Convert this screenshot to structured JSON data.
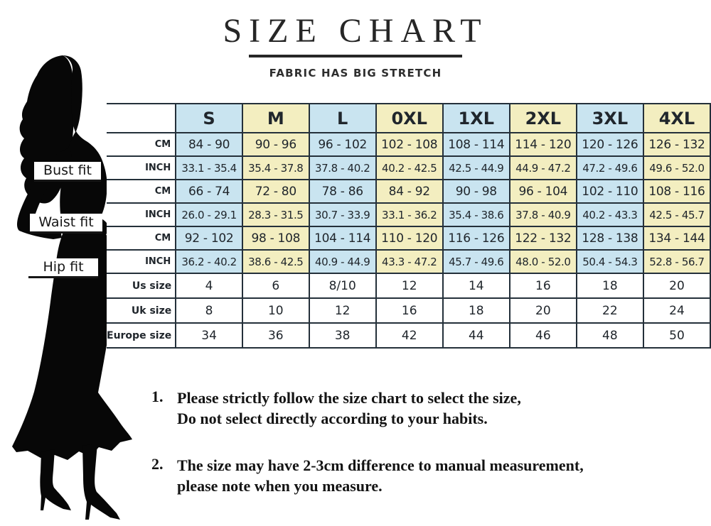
{
  "title": "SIZE CHART",
  "subtitle": "FABRIC HAS BIG STRETCH",
  "colors": {
    "column_blue": "#c9e4f0",
    "column_yellow": "#f3eec0",
    "grid_border": "#24303a",
    "text": "#1d1d1d",
    "silhouette": "#070707"
  },
  "figure": {
    "bust_label": "Bust fit",
    "waist_label": "Waist fit",
    "hip_label": "Hip fit"
  },
  "chart_data": {
    "type": "table",
    "title": "SIZE CHART",
    "subtitle": "FABRIC HAS BIG STRETCH",
    "size_columns": [
      "S",
      "M",
      "L",
      "0XL",
      "1XL",
      "2XL",
      "3XL",
      "4XL"
    ],
    "measurement_groups": [
      {
        "name": "Bust fit",
        "cm": [
          "84 - 90",
          "90 - 96",
          "96 - 102",
          "102 - 108",
          "108 - 114",
          "114 - 120",
          "120 - 126",
          "126 - 132"
        ],
        "inch": [
          "33.1 - 35.4",
          "35.4 - 37.8",
          "37.8 - 40.2",
          "40.2 - 42.5",
          "42.5 - 44.9",
          "44.9 - 47.2",
          "47.2 - 49.6",
          "49.6 - 52.0"
        ]
      },
      {
        "name": "Waist fit",
        "cm": [
          "66 - 74",
          "72 - 80",
          "78 - 86",
          "84 - 92",
          "90 - 98",
          "96 - 104",
          "102 - 110",
          "108 - 116"
        ],
        "inch": [
          "26.0 - 29.1",
          "28.3 - 31.5",
          "30.7 - 33.9",
          "33.1 - 36.2",
          "35.4 - 38.6",
          "37.8 - 40.9",
          "40.2 - 43.3",
          "42.5 - 45.7"
        ]
      },
      {
        "name": "Hip fit",
        "cm": [
          "92 - 102",
          "98 - 108",
          "104 - 114",
          "110 - 120",
          "116 - 126",
          "122 - 132",
          "128 - 138",
          "134 - 144"
        ],
        "inch": [
          "36.2 - 40.2",
          "38.6 - 42.5",
          "40.9 - 44.9",
          "43.3 - 47.2",
          "45.7 - 49.6",
          "48.0 - 52.0",
          "50.4 - 54.3",
          "52.8 - 56.7"
        ]
      }
    ],
    "unit_labels": {
      "cm": "CM",
      "inch": "INCH"
    },
    "conversion_rows": [
      {
        "label": "Us size",
        "values": [
          "4",
          "6",
          "8/10",
          "12",
          "14",
          "16",
          "18",
          "20"
        ]
      },
      {
        "label": "Uk size",
        "values": [
          "8",
          "10",
          "12",
          "16",
          "18",
          "20",
          "22",
          "24"
        ]
      },
      {
        "label": "Europe size",
        "values": [
          "34",
          "36",
          "38",
          "42",
          "44",
          "46",
          "48",
          "50"
        ]
      }
    ]
  },
  "notes": [
    {
      "num": "1.",
      "line1": "Please strictly follow the size chart to select the size,",
      "line2": "Do not select directly according to your habits."
    },
    {
      "num": "2.",
      "line1": "The size may have 2-3cm difference  to manual measurement,",
      "line2": "please note when you measure."
    }
  ]
}
